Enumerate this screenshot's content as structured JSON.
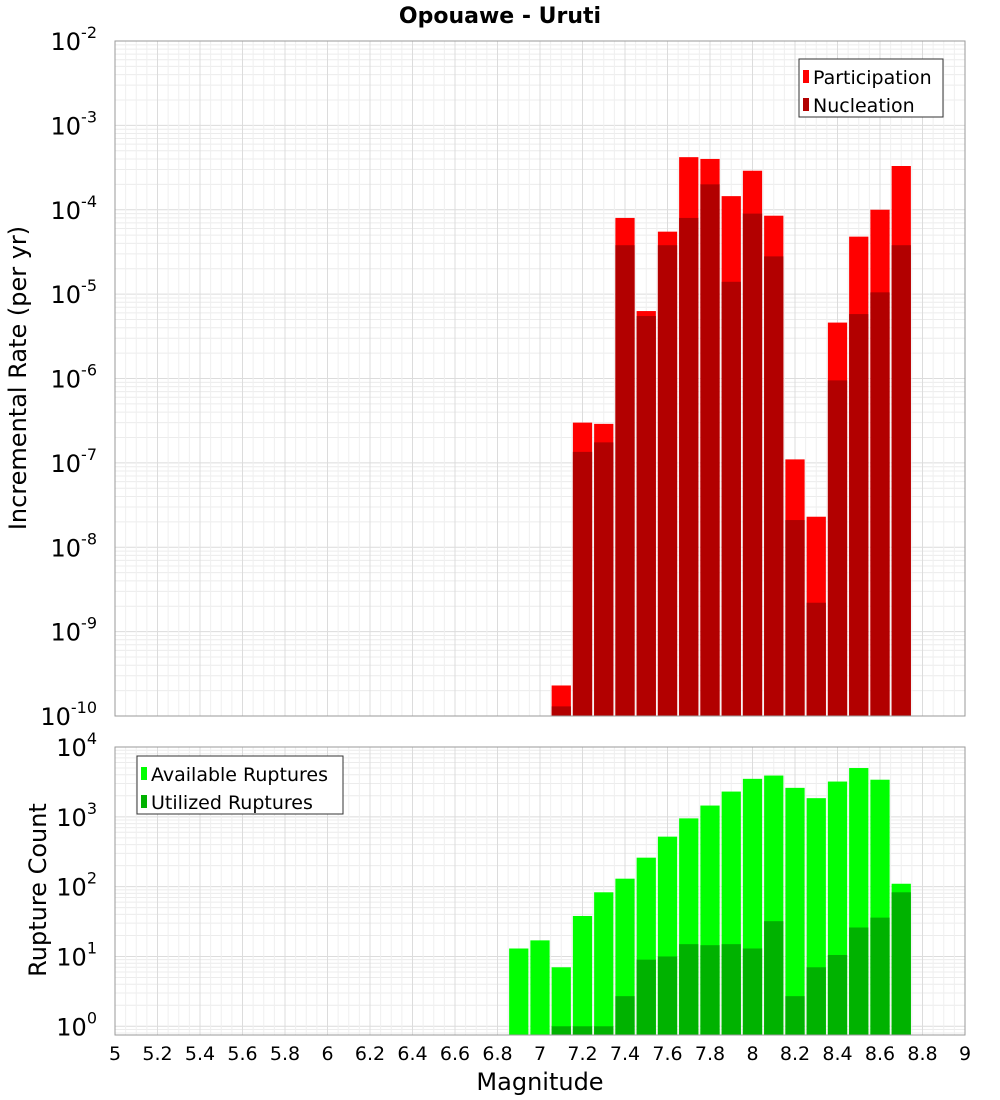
{
  "chart_data": [
    {
      "type": "bar",
      "title": "Opouawe - Uruti",
      "ylabel": "Incremental Rate (per yr)",
      "yscale": "log",
      "ylim": [
        1e-10,
        0.01
      ],
      "y_ticks": [
        {
          "base": "10",
          "exp": "-10"
        },
        {
          "base": "10",
          "exp": "-9"
        },
        {
          "base": "10",
          "exp": "-8"
        },
        {
          "base": "10",
          "exp": "-7"
        },
        {
          "base": "10",
          "exp": "-6"
        },
        {
          "base": "10",
          "exp": "-5"
        },
        {
          "base": "10",
          "exp": "-4"
        },
        {
          "base": "10",
          "exp": "-3"
        },
        {
          "base": "10",
          "exp": "-2"
        }
      ],
      "xlim": [
        5,
        9
      ],
      "legend_position": "top-right",
      "x": [
        7.1,
        7.2,
        7.3,
        7.4,
        7.5,
        7.6,
        7.7,
        7.8,
        7.9,
        8.0,
        8.1,
        8.2,
        8.3,
        8.4,
        8.5,
        8.6,
        8.7,
        8.8
      ],
      "series": [
        {
          "name": "Participation",
          "color": "#ff0000",
          "values": [
            2.3e-10,
            3e-07,
            2.9e-07,
            8e-05,
            6.3e-06,
            5.5e-05,
            0.00042,
            0.0004,
            0.000145,
            0.00029,
            8.5e-05,
            1.1e-07,
            2.3e-08,
            4.6e-06,
            4.8e-05,
            0.0001,
            0.00033,
            null
          ]
        },
        {
          "name": "Nucleation",
          "color": "#b20000",
          "values": [
            1.3e-10,
            1.35e-07,
            1.75e-07,
            3.8e-05,
            5.5e-06,
            3.8e-05,
            8e-05,
            0.0002,
            1.4e-05,
            9e-05,
            2.8e-05,
            2.1e-08,
            2.2e-09,
            9.5e-07,
            5.8e-06,
            1.05e-05,
            3.8e-05,
            null
          ]
        }
      ]
    },
    {
      "type": "bar",
      "title": "",
      "xlabel": "Magnitude",
      "ylabel": "Rupture Count",
      "yscale": "log",
      "ylim": [
        0.75,
        10000
      ],
      "y_ticks": [
        {
          "base": "10",
          "exp": "0"
        },
        {
          "base": "10",
          "exp": "1"
        },
        {
          "base": "10",
          "exp": "2"
        },
        {
          "base": "10",
          "exp": "3"
        },
        {
          "base": "10",
          "exp": "4"
        }
      ],
      "xlim": [
        5,
        9
      ],
      "x_tick_labels": [
        "5",
        "5.2",
        "5.4",
        "5.6",
        "5.8",
        "6",
        "6.2",
        "6.4",
        "6.6",
        "6.8",
        "7",
        "7.2",
        "7.4",
        "7.6",
        "7.8",
        "8",
        "8.2",
        "8.4",
        "8.6",
        "8.8",
        "9"
      ],
      "legend_position": "top-left",
      "x": [
        6.9,
        7.0,
        7.1,
        7.2,
        7.3,
        7.4,
        7.5,
        7.6,
        7.7,
        7.8,
        7.9,
        8.0,
        8.1,
        8.2,
        8.3,
        8.4,
        8.5,
        8.6,
        8.7
      ],
      "series": [
        {
          "name": "Available Ruptures",
          "color": "#00ff00",
          "values": [
            13,
            17,
            7,
            38,
            83,
            130,
            260,
            520,
            950,
            1450,
            2300,
            3500,
            3900,
            2600,
            1850,
            3200,
            5000,
            3400,
            110
          ]
        },
        {
          "name": "Utilized Ruptures",
          "color": "#00b200",
          "values": [
            null,
            null,
            1,
            1,
            1,
            2.7,
            9,
            10,
            15,
            14.5,
            15,
            13,
            32,
            2.7,
            7,
            10.5,
            26,
            36,
            83
          ]
        }
      ]
    }
  ]
}
